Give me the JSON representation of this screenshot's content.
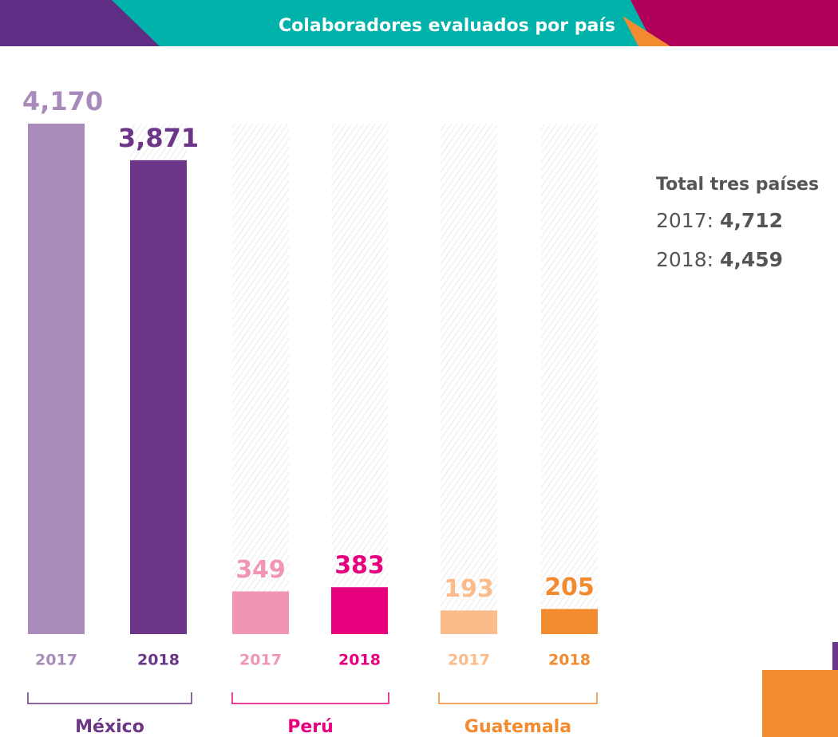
{
  "chart_data": {
    "type": "bar",
    "title": "Colaboradores evaluados por país",
    "categories": [
      "México",
      "Perú",
      "Guatemala"
    ],
    "series": [
      {
        "name": "2017",
        "values": [
          4170,
          349,
          193
        ],
        "value_labels": [
          "4,170",
          "349",
          "193"
        ],
        "colors": [
          "#a88bbb",
          "#f096b4",
          "#fbbb8a"
        ]
      },
      {
        "name": "2018",
        "values": [
          3871,
          383,
          205
        ],
        "value_labels": [
          "3,871",
          "383",
          "205"
        ],
        "colors": [
          "#6c3587",
          "#e6007e",
          "#f28a30"
        ]
      }
    ],
    "totals": {
      "title": "Total tres países",
      "rows": [
        {
          "label": "2017:",
          "value": "4,712"
        },
        {
          "label": "2018:",
          "value": "4,459"
        }
      ]
    }
  }
}
